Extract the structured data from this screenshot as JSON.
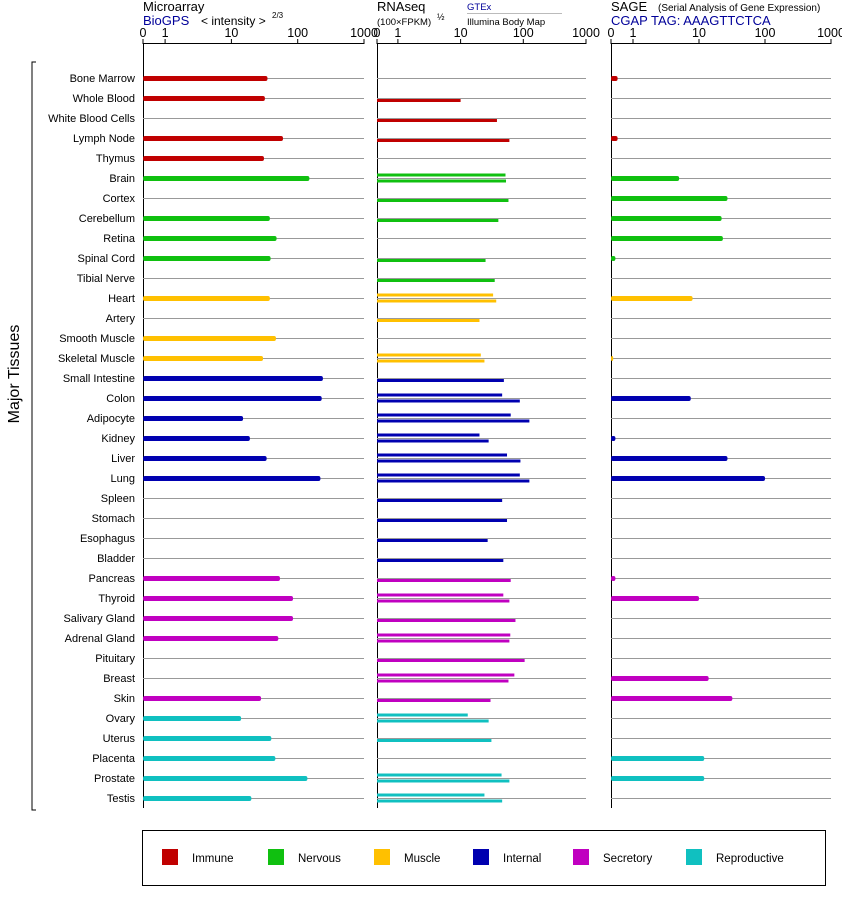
{
  "colors": {
    "Immune": "#c00000",
    "Nervous": "#10c010",
    "Muscle": "#ffc000",
    "Internal": "#0000b0",
    "Secretory": "#c000c0",
    "Reproductive": "#10c0c0",
    "link": "#000099",
    "grid": "#999999"
  },
  "chart_data": {
    "type": "bar",
    "orientation": "horizontal",
    "y_axis_label": "Major Tissues",
    "axis_ticks": [
      "0",
      "1",
      "10",
      "100",
      "1000"
    ],
    "tissues": [
      {
        "name": "Bone Marrow",
        "group": "Immune",
        "microarray": 35,
        "rnaseq": [],
        "sage": 0.3
      },
      {
        "name": "Whole Blood",
        "group": "Immune",
        "microarray": 32,
        "rnaseq": [
          10
        ],
        "sage": null
      },
      {
        "name": "White Blood Cells",
        "group": "Immune",
        "microarray": null,
        "rnaseq": [
          38
        ],
        "sage": null
      },
      {
        "name": "Lymph Node",
        "group": "Immune",
        "microarray": 60,
        "rnaseq": [
          60
        ],
        "sage": 0.3
      },
      {
        "name": "Thymus",
        "group": "Immune",
        "microarray": 31,
        "rnaseq": [],
        "sage": null
      },
      {
        "name": "Brain",
        "group": "Nervous",
        "microarray": 150,
        "rnaseq": [
          52,
          53
        ],
        "sage": 5
      },
      {
        "name": "Cortex",
        "group": "Nervous",
        "microarray": null,
        "rnaseq": [
          58
        ],
        "sage": 27
      },
      {
        "name": "Cerebellum",
        "group": "Nervous",
        "microarray": 38,
        "rnaseq": [
          40
        ],
        "sage": 22
      },
      {
        "name": "Retina",
        "group": "Nervous",
        "microarray": 48,
        "rnaseq": [],
        "sage": 23
      },
      {
        "name": "Spinal Cord",
        "group": "Nervous",
        "microarray": 39,
        "rnaseq": [
          25
        ],
        "sage": 0.2
      },
      {
        "name": "Tibial Nerve",
        "group": "Nervous",
        "microarray": null,
        "rnaseq": [
          35
        ],
        "sage": null
      },
      {
        "name": "Heart",
        "group": "Muscle",
        "microarray": 38,
        "rnaseq": [
          33,
          37
        ],
        "sage": 8
      },
      {
        "name": "Artery",
        "group": "Muscle",
        "microarray": null,
        "rnaseq": [
          20
        ],
        "sage": null
      },
      {
        "name": "Smooth Muscle",
        "group": "Muscle",
        "microarray": 47,
        "rnaseq": [],
        "sage": null
      },
      {
        "name": "Skeletal Muscle",
        "group": "Muscle",
        "microarray": 30,
        "rnaseq": [
          21,
          24
        ],
        "sage": 0.1
      },
      {
        "name": "Small Intestine",
        "group": "Internal",
        "microarray": 240,
        "rnaseq": [
          49
        ],
        "sage": null
      },
      {
        "name": "Colon",
        "group": "Internal",
        "microarray": 230,
        "rnaseq": [
          46,
          88
        ],
        "sage": 7.5
      },
      {
        "name": "Adipocyte",
        "group": "Internal",
        "microarray": 15,
        "rnaseq": [
          63,
          125
        ],
        "sage": null
      },
      {
        "name": "Kidney",
        "group": "Internal",
        "microarray": 19,
        "rnaseq": [
          20,
          28
        ],
        "sage": 0.2
      },
      {
        "name": "Liver",
        "group": "Internal",
        "microarray": 34,
        "rnaseq": [
          55,
          90
        ],
        "sage": 27
      },
      {
        "name": "Lung",
        "group": "Internal",
        "microarray": 220,
        "rnaseq": [
          88,
          125
        ],
        "sage": 100
      },
      {
        "name": "Spleen",
        "group": "Internal",
        "microarray": null,
        "rnaseq": [
          46
        ],
        "sage": null
      },
      {
        "name": "Stomach",
        "group": "Internal",
        "microarray": null,
        "rnaseq": [
          55
        ],
        "sage": null
      },
      {
        "name": "Esophagus",
        "group": "Internal",
        "microarray": null,
        "rnaseq": [
          27
        ],
        "sage": null
      },
      {
        "name": "Bladder",
        "group": "Internal",
        "microarray": null,
        "rnaseq": [
          48
        ],
        "sage": null
      },
      {
        "name": "Pancreas",
        "group": "Secretory",
        "microarray": 54,
        "rnaseq": [
          63
        ],
        "sage": 0.2
      },
      {
        "name": "Thyroid",
        "group": "Secretory",
        "microarray": 85,
        "rnaseq": [
          48,
          60
        ],
        "sage": 10
      },
      {
        "name": "Salivary Gland",
        "group": "Secretory",
        "microarray": 85,
        "rnaseq": [
          75
        ],
        "sage": null
      },
      {
        "name": "Adrenal Gland",
        "group": "Secretory",
        "microarray": 51,
        "rnaseq": [
          62,
          60
        ],
        "sage": null
      },
      {
        "name": "Pituitary",
        "group": "Secretory",
        "microarray": null,
        "rnaseq": [
          105
        ],
        "sage": null
      },
      {
        "name": "Breast",
        "group": "Secretory",
        "microarray": null,
        "rnaseq": [
          72,
          58
        ],
        "sage": 14
      },
      {
        "name": "Skin",
        "group": "Secretory",
        "microarray": 28,
        "rnaseq": [
          30
        ],
        "sage": 32
      },
      {
        "name": "Ovary",
        "group": "Reproductive",
        "microarray": 14,
        "rnaseq": [
          13,
          28
        ],
        "sage": null
      },
      {
        "name": "Uterus",
        "group": "Reproductive",
        "microarray": 40,
        "rnaseq": [
          31
        ],
        "sage": null
      },
      {
        "name": "Placenta",
        "group": "Reproductive",
        "microarray": 46,
        "rnaseq": [],
        "sage": 12
      },
      {
        "name": "Prostate",
        "group": "Reproductive",
        "microarray": 140,
        "rnaseq": [
          45,
          60
        ],
        "sage": 12
      },
      {
        "name": "Testis",
        "group": "Reproductive",
        "microarray": 20,
        "rnaseq": [
          24,
          46
        ],
        "sage": null
      }
    ]
  },
  "headers": {
    "microarray": {
      "title": "Microarray",
      "link": "BioGPS",
      "scale": "< intensity >",
      "exponent": "2/3"
    },
    "rnaseq": {
      "title": "RNAseq",
      "scale": "(100×FPKM)",
      "exponent": "½",
      "source1": "GTEx",
      "source2": "Illumina Body Map"
    },
    "sage": {
      "title": "SAGE",
      "subtitle": "(Serial Analysis of Gene Expression)",
      "tag": "CGAP TAG: AAAGTTCTCA"
    }
  },
  "legend": [
    {
      "label": "Immune",
      "key": "Immune"
    },
    {
      "label": "Nervous",
      "key": "Nervous"
    },
    {
      "label": "Muscle",
      "key": "Muscle"
    },
    {
      "label": "Internal",
      "key": "Internal"
    },
    {
      "label": "Secretory",
      "key": "Secretory"
    },
    {
      "label": "Reproductive",
      "key": "Reproductive"
    }
  ]
}
